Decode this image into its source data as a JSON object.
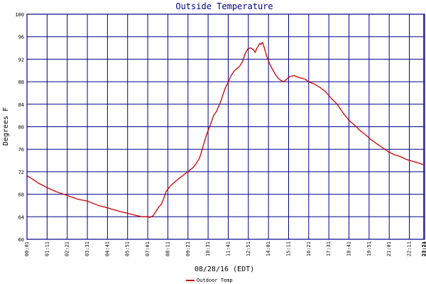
{
  "chart_data": {
    "type": "line",
    "title": "Outside Temperature",
    "ylabel": "Degrees F",
    "xlabel": "08/28/16 (EDT)",
    "ylim": [
      60,
      100
    ],
    "yticks": [
      60,
      64,
      68,
      72,
      76,
      80,
      84,
      88,
      92,
      96,
      100
    ],
    "xlim": [
      61,
      1444
    ],
    "xtick_values": [
      61,
      131,
      201,
      271,
      341,
      411,
      481,
      551,
      621,
      691,
      761,
      831,
      901,
      971,
      1041,
      1111,
      1181,
      1251,
      1321,
      1391,
      1441,
      1444
    ],
    "xtick_labels": [
      "00:01",
      "01:11",
      "02:21",
      "03:31",
      "04:41",
      "05:51",
      "07:01",
      "08:11",
      "09:21",
      "10:31",
      "11:41",
      "12:51",
      "14:01",
      "15:11",
      "16:21",
      "17:31",
      "18:41",
      "19:51",
      "21:01",
      "22:11",
      "23:21",
      "23:24"
    ],
    "grid": true,
    "legend_position": "bottom",
    "series": [
      {
        "name": "Outdoor Temp",
        "color": "#cc0000",
        "x": [
          61,
          80,
          100,
          130,
          160,
          200,
          240,
          270,
          310,
          340,
          380,
          420,
          460,
          480,
          490,
          500,
          510,
          520,
          528,
          535,
          545,
          560,
          580,
          600,
          620,
          640,
          650,
          660,
          668,
          675,
          685,
          700,
          710,
          720,
          735,
          750,
          760,
          770,
          780,
          790,
          800,
          810,
          820,
          830,
          840,
          850,
          855,
          860,
          865,
          870,
          875,
          880,
          885,
          895,
          905,
          915,
          925,
          935,
          945,
          955,
          965,
          975,
          990,
          1000,
          1010,
          1020,
          1030,
          1040,
          1060,
          1080,
          1100,
          1120,
          1140,
          1160,
          1180,
          1200,
          1220,
          1240,
          1260,
          1280,
          1300,
          1320,
          1340,
          1360,
          1380,
          1400,
          1420,
          1444
        ],
        "values": [
          71.3,
          70.7,
          70.0,
          69.2,
          68.5,
          67.8,
          67.1,
          66.8,
          66.0,
          65.6,
          65.0,
          64.5,
          64.0,
          64.0,
          63.9,
          64.2,
          65.0,
          65.8,
          66.2,
          67.0,
          68.5,
          69.5,
          70.4,
          71.2,
          72.0,
          72.8,
          73.5,
          74.3,
          75.5,
          76.8,
          78.5,
          80.5,
          82.0,
          82.7,
          84.5,
          86.8,
          87.8,
          89.0,
          89.8,
          90.3,
          90.7,
          91.5,
          93.0,
          93.9,
          94.0,
          93.6,
          93.2,
          93.9,
          94.3,
          94.8,
          94.6,
          95.0,
          94.3,
          92.5,
          91.2,
          90.2,
          89.3,
          88.6,
          88.2,
          88.0,
          88.5,
          88.9,
          89.1,
          88.9,
          88.7,
          88.6,
          88.4,
          88.0,
          87.6,
          87.0,
          86.2,
          85.0,
          84.0,
          82.5,
          81.2,
          80.3,
          79.3,
          78.5,
          77.6,
          76.9,
          76.2,
          75.5,
          75.0,
          74.7,
          74.2,
          73.9,
          73.6,
          73.2
        ]
      }
    ]
  }
}
